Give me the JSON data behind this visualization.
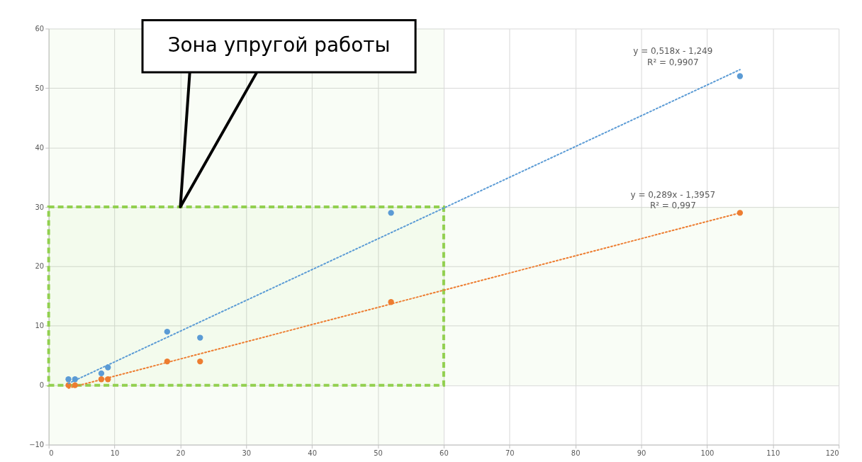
{
  "chart_data": {
    "type": "scatter",
    "xlim": [
      0,
      120
    ],
    "ylim": [
      -10,
      60
    ],
    "xticks": [
      0,
      10,
      20,
      30,
      40,
      50,
      60,
      70,
      80,
      90,
      100,
      110,
      120
    ],
    "yticks": [
      -10,
      0,
      10,
      20,
      30,
      40,
      50,
      60
    ],
    "grid": true,
    "marker": "circle",
    "series": [
      {
        "color": "#5b9bd5",
        "x": [
          3,
          4,
          8,
          9,
          18,
          23,
          52,
          105
        ],
        "values": [
          1,
          1,
          2,
          3,
          9,
          8,
          29,
          52
        ]
      },
      {
        "color": "#ed7d31",
        "x": [
          3,
          4,
          8,
          9,
          18,
          23,
          52,
          105
        ],
        "values": [
          0,
          0,
          1,
          1,
          4,
          4,
          14,
          29
        ]
      },
      {
        "type": "line",
        "marker": "none",
        "line_style": "dotted",
        "color": "#5b9bd5",
        "x": [
          3,
          105
        ],
        "values": [
          0.3,
          53.1
        ]
      },
      {
        "type": "line",
        "marker": "none",
        "line_style": "dotted",
        "color": "#ed7d31",
        "x": [
          3,
          105
        ],
        "values": [
          -0.5,
          29.0
        ]
      }
    ],
    "bands": [
      {
        "axis": "x",
        "from": 0,
        "to": 60,
        "color": "#92d050"
      },
      {
        "axis": "y",
        "from": 0,
        "to": 30,
        "color": "#92d050"
      }
    ],
    "annotations": [
      "Зона упругой работы",
      "y = 0,518x - 1,249",
      "R² = 0,9907",
      "y = 0,289x - 1,3957",
      "R² = 0,997"
    ]
  }
}
